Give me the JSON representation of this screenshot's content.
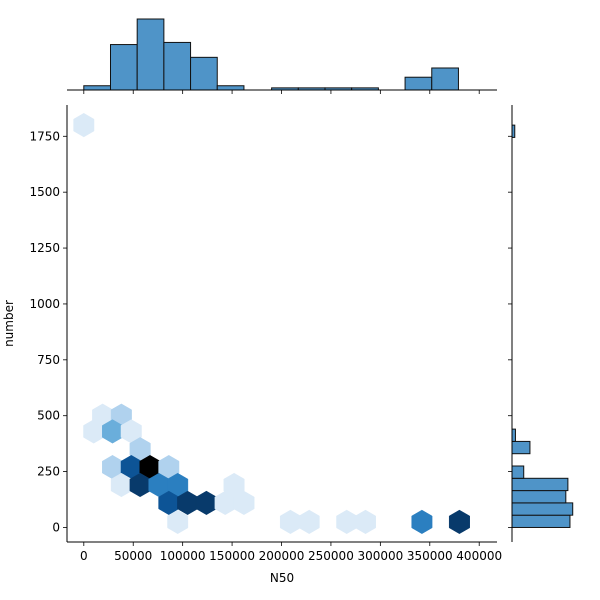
{
  "chart_data": {
    "type": "hexbin-jointplot",
    "title": "",
    "xlabel": "N50",
    "ylabel": "number",
    "xlim": [
      -17000,
      418000
    ],
    "ylim": [
      -65,
      1890
    ],
    "x_ticks": [
      0,
      50000,
      100000,
      150000,
      200000,
      250000,
      300000,
      350000,
      400000
    ],
    "x_tick_labels": [
      "0",
      "50000",
      "100000",
      "150000",
      "200000",
      "250000",
      "300000",
      "350000",
      "400000"
    ],
    "y_ticks": [
      0,
      250,
      500,
      750,
      1000,
      1250,
      1500,
      1750
    ],
    "y_tick_labels": [
      "0",
      "250",
      "500",
      "750",
      "1000",
      "1250",
      "1500",
      "1750"
    ],
    "colormap": [
      "#ffffff",
      "#dbeaf7",
      "#b0d2ee",
      "#6aaedb",
      "#2b7fc0",
      "#0d5496",
      "#083a6b",
      "#000000"
    ],
    "hexbins": [
      {
        "x": 0,
        "y": 1800,
        "count": 1
      },
      {
        "x": 19000,
        "y": 500,
        "count": 1
      },
      {
        "x": 38000,
        "y": 500,
        "count": 2
      },
      {
        "x": 10000,
        "y": 430,
        "count": 1
      },
      {
        "x": 29000,
        "y": 430,
        "count": 3
      },
      {
        "x": 48000,
        "y": 430,
        "count": 1
      },
      {
        "x": 57000,
        "y": 350,
        "count": 2
      },
      {
        "x": 29000,
        "y": 270,
        "count": 2
      },
      {
        "x": 48000,
        "y": 270,
        "count": 5
      },
      {
        "x": 67000,
        "y": 270,
        "count": 7
      },
      {
        "x": 86000,
        "y": 270,
        "count": 2
      },
      {
        "x": 38000,
        "y": 190,
        "count": 1
      },
      {
        "x": 57000,
        "y": 190,
        "count": 6
      },
      {
        "x": 76000,
        "y": 190,
        "count": 4
      },
      {
        "x": 95000,
        "y": 190,
        "count": 4
      },
      {
        "x": 152000,
        "y": 190,
        "count": 1
      },
      {
        "x": 86000,
        "y": 110,
        "count": 5
      },
      {
        "x": 105000,
        "y": 110,
        "count": 6
      },
      {
        "x": 124000,
        "y": 110,
        "count": 6
      },
      {
        "x": 143000,
        "y": 110,
        "count": 1
      },
      {
        "x": 162000,
        "y": 110,
        "count": 1
      },
      {
        "x": 95000,
        "y": 25,
        "count": 1
      },
      {
        "x": 209000,
        "y": 25,
        "count": 1
      },
      {
        "x": 228000,
        "y": 25,
        "count": 1
      },
      {
        "x": 266000,
        "y": 25,
        "count": 1
      },
      {
        "x": 285000,
        "y": 25,
        "count": 1
      },
      {
        "x": 342000,
        "y": 25,
        "count": 4
      },
      {
        "x": 380000,
        "y": 25,
        "count": 6
      }
    ],
    "top_histogram": {
      "bins": [
        {
          "x0": 0,
          "x1": 27000,
          "h": 0.06
        },
        {
          "x0": 27000,
          "x1": 54000,
          "h": 0.64
        },
        {
          "x0": 54000,
          "x1": 81000,
          "h": 1.0
        },
        {
          "x0": 81000,
          "x1": 108000,
          "h": 0.67
        },
        {
          "x0": 108000,
          "x1": 135000,
          "h": 0.46
        },
        {
          "x0": 135000,
          "x1": 162000,
          "h": 0.06
        },
        {
          "x0": 190000,
          "x1": 217000,
          "h": 0.03
        },
        {
          "x0": 217000,
          "x1": 244000,
          "h": 0.03
        },
        {
          "x0": 244000,
          "x1": 271000,
          "h": 0.03
        },
        {
          "x0": 271000,
          "x1": 298000,
          "h": 0.03
        },
        {
          "x0": 325000,
          "x1": 352000,
          "h": 0.18
        },
        {
          "x0": 352000,
          "x1": 379000,
          "h": 0.31
        }
      ]
    },
    "right_histogram": {
      "bins": [
        {
          "y0": 0,
          "y1": 55,
          "w": 0.84
        },
        {
          "y0": 55,
          "y1": 110,
          "w": 0.88
        },
        {
          "y0": 110,
          "y1": 165,
          "w": 0.78
        },
        {
          "y0": 165,
          "y1": 220,
          "w": 0.81
        },
        {
          "y0": 220,
          "y1": 275,
          "w": 0.17
        },
        {
          "y0": 330,
          "y1": 385,
          "w": 0.26
        },
        {
          "y0": 385,
          "y1": 440,
          "w": 0.05
        },
        {
          "y0": 1745,
          "y1": 1800,
          "w": 0.04
        }
      ]
    }
  }
}
